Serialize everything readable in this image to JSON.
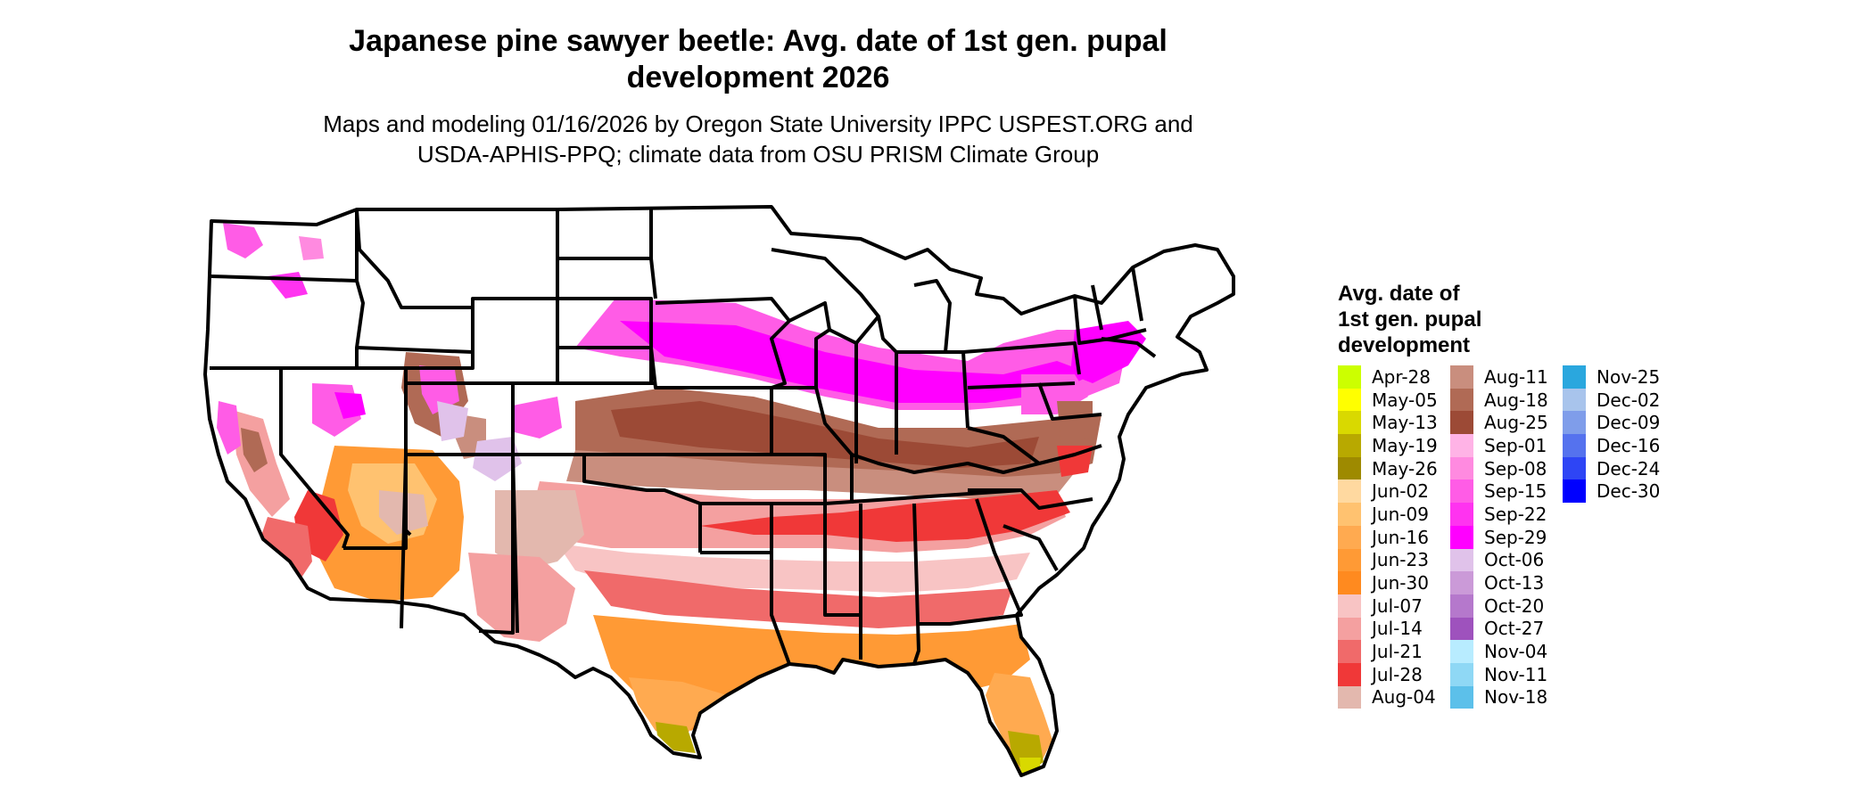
{
  "title": {
    "line1": "Japanese pine sawyer beetle: Avg. date of 1st gen. pupal",
    "line2": "development 2026"
  },
  "subtitle": {
    "line1": "Maps and modeling 01/16/2026 by Oregon State University IPPC USPEST.ORG and",
    "line2": "USDA-APHIS-PPQ; climate data from OSU PRISM Climate Group"
  },
  "legend": {
    "title_line1": "Avg. date of",
    "title_line2": "1st gen. pupal",
    "title_line3": "development",
    "columns": [
      [
        {
          "label": "Apr-28",
          "color": "#CCFF00"
        },
        {
          "label": "May-05",
          "color": "#FFFF00"
        },
        {
          "label": "May-13",
          "color": "#D9D900"
        },
        {
          "label": "May-19",
          "color": "#B8A900"
        },
        {
          "label": "May-26",
          "color": "#9E8A00"
        },
        {
          "label": "Jun-02",
          "color": "#FFD9A0"
        },
        {
          "label": "Jun-09",
          "color": "#FFC270"
        },
        {
          "label": "Jun-16",
          "color": "#FFAA50"
        },
        {
          "label": "Jun-23",
          "color": "#FF9A35"
        },
        {
          "label": "Jun-30",
          "color": "#FF8A1F"
        },
        {
          "label": "Jul-07",
          "color": "#F8C4C4"
        },
        {
          "label": "Jul-14",
          "color": "#F4A0A0"
        },
        {
          "label": "Jul-21",
          "color": "#F06A6A"
        },
        {
          "label": "Jul-28",
          "color": "#F03838"
        },
        {
          "label": "Aug-04",
          "color": "#E3B8AE"
        }
      ],
      [
        {
          "label": "Aug-11",
          "color": "#C98E7E"
        },
        {
          "label": "Aug-18",
          "color": "#B06A55"
        },
        {
          "label": "Aug-25",
          "color": "#9C4A36"
        },
        {
          "label": "Sep-01",
          "color": "#FFB3E6"
        },
        {
          "label": "Sep-08",
          "color": "#FF8AE0"
        },
        {
          "label": "Sep-15",
          "color": "#FF5CE6"
        },
        {
          "label": "Sep-22",
          "color": "#FF33F0"
        },
        {
          "label": "Sep-29",
          "color": "#FF00FF"
        },
        {
          "label": "Oct-06",
          "color": "#E0C2EA"
        },
        {
          "label": "Oct-13",
          "color": "#CB9AD8"
        },
        {
          "label": "Oct-20",
          "color": "#B578CC"
        },
        {
          "label": "Oct-27",
          "color": "#9E52BD"
        },
        {
          "label": "Nov-04",
          "color": "#B8ECFF"
        },
        {
          "label": "Nov-11",
          "color": "#8FD8F5"
        },
        {
          "label": "Nov-18",
          "color": "#5CC0EA"
        }
      ],
      [
        {
          "label": "Nov-25",
          "color": "#2AA7DE"
        },
        {
          "label": "Dec-02",
          "color": "#A8C4EC"
        },
        {
          "label": "Dec-09",
          "color": "#7F9DEA"
        },
        {
          "label": "Dec-16",
          "color": "#5572EE"
        },
        {
          "label": "Dec-24",
          "color": "#2E45F5"
        },
        {
          "label": "Dec-30",
          "color": "#0000FF"
        }
      ]
    ]
  }
}
